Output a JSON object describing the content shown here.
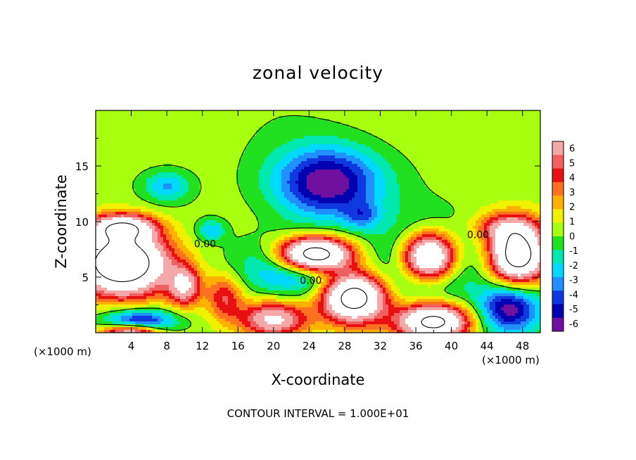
{
  "chart_data": {
    "type": "heatmap",
    "title": "zonal velocity",
    "xlabel": "X-coordinate",
    "ylabel": "Z-coordinate",
    "x_unit": "(×1000 m)",
    "xlim": [
      0,
      50
    ],
    "ylim": [
      0,
      20
    ],
    "x_ticks": [
      4,
      8,
      12,
      16,
      20,
      24,
      28,
      32,
      36,
      40,
      44,
      48
    ],
    "y_ticks": [
      5,
      10,
      15
    ],
    "contour_interval_text": "CONTOUR INTERVAL = 1.000E+01",
    "contour_labels": [
      {
        "text": "0.00",
        "x": 12.3,
        "z": 7.7
      },
      {
        "text": "0.00",
        "x": 24.2,
        "z": 4.4
      },
      {
        "text": "0.00",
        "x": 43.0,
        "z": 8.5
      }
    ],
    "colorbar": {
      "min": -6,
      "max": 6,
      "tick_values": [
        6,
        5,
        4,
        3,
        2,
        1,
        0,
        -1,
        -2,
        -3,
        -4,
        -5,
        -6
      ],
      "colors": [
        "#f4a8a8",
        "#f06060",
        "#e81010",
        "#ff7020",
        "#ffb000",
        "#f0f000",
        "#a8ff10",
        "#20e020",
        "#00e8b0",
        "#00d8ff",
        "#2090ff",
        "#1038e0",
        "#0000b0",
        "#7010a0"
      ],
      "saturated_high_color": "#ffffff"
    },
    "field_features": [
      {
        "sign": "negative",
        "x": 26,
        "z": 13.5,
        "rx": 6,
        "rz": 3.2,
        "amplitude": -6.5
      },
      {
        "sign": "negative",
        "x": 8,
        "z": 13.2,
        "rx": 2.5,
        "rz": 1.3,
        "amplitude": -3
      },
      {
        "sign": "negative",
        "x": 37.5,
        "z": 6.5,
        "rx": 4.6,
        "rz": 3.2,
        "amplitude": -7
      },
      {
        "sign": "positive",
        "x": 37.5,
        "z": 6.8,
        "rx": 3.2,
        "rz": 2.3,
        "amplitude": 16
      },
      {
        "sign": "negative",
        "x": 23,
        "z": 6.2,
        "rx": 5.8,
        "rz": 2.4,
        "amplitude": -6
      },
      {
        "sign": "positive",
        "x": 24.5,
        "z": 7.0,
        "rx": 4.2,
        "rz": 1.6,
        "amplitude": 16
      },
      {
        "sign": "positive",
        "x": 3,
        "z": 6.3,
        "rx": 5,
        "rz": 2.8,
        "amplitude": 14
      },
      {
        "sign": "positive",
        "x": 3,
        "z": 9.5,
        "rx": 3.5,
        "rz": 1.1,
        "amplitude": 8
      },
      {
        "sign": "positive",
        "x": 29,
        "z": 3.2,
        "rx": 3.5,
        "rz": 2.2,
        "amplitude": 12
      },
      {
        "sign": "positive",
        "x": 38,
        "z": 1.0,
        "rx": 4,
        "rz": 1.6,
        "amplitude": 11
      },
      {
        "sign": "positive",
        "x": 47.5,
        "z": 7.0,
        "rx": 3,
        "rz": 2.5,
        "amplitude": 12
      },
      {
        "sign": "negative",
        "x": 46.5,
        "z": 2.2,
        "rx": 3.5,
        "rz": 2.2,
        "amplitude": -6
      },
      {
        "sign": "negative",
        "x": 5,
        "z": 1.0,
        "rx": 4,
        "rz": 1.1,
        "amplitude": -6
      },
      {
        "sign": "positive",
        "x": 4,
        "z": 0.1,
        "rx": 3.2,
        "rz": 0.7,
        "amplitude": 8
      },
      {
        "sign": "positive",
        "x": 20,
        "z": 1.2,
        "rx": 3.8,
        "rz": 1.6,
        "amplitude": 7
      },
      {
        "sign": "positive",
        "x": 10,
        "z": 4.2,
        "rx": 1.8,
        "rz": 1.8,
        "amplitude": 6
      },
      {
        "sign": "positive",
        "x": 14.5,
        "z": 3.2,
        "rx": 2,
        "rz": 2,
        "amplitude": 4
      },
      {
        "sign": "positive",
        "x": 46,
        "z": 9.5,
        "rx": 3.5,
        "rz": 1.3,
        "amplitude": 4
      },
      {
        "sign": "negative",
        "x": 13,
        "z": 9.2,
        "rx": 1.5,
        "rz": 0.9,
        "amplitude": -3
      },
      {
        "sign": "negative",
        "x": 30,
        "z": 10.5,
        "rx": 2,
        "rz": 1.2,
        "amplitude": -2.5
      }
    ]
  }
}
